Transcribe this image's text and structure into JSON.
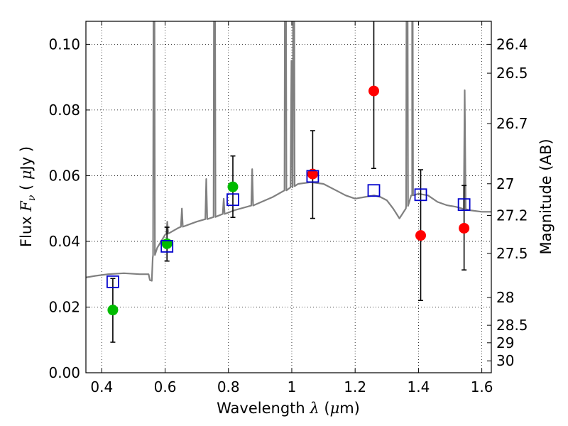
{
  "chart_data": {
    "type": "scatter",
    "title": "",
    "xlabel": {
      "prefix": "Wavelength  ",
      "symbol": "λ",
      "suffix_open": " (",
      "unit_mu": "μ",
      "unit_rest": "m)"
    },
    "ylabel": {
      "prefix": "Flux  ",
      "symbol_F": "F",
      "symbol_sub": "ν",
      "suffix_open": "  ( ",
      "unit_mu": "μ",
      "unit_rest": "Jy )"
    },
    "y2label": "Magnitude (AB)",
    "xlim": [
      0.35,
      1.63
    ],
    "ylim": [
      0.0,
      0.107
    ],
    "xticks": [
      0.4,
      0.6,
      0.8,
      1.0,
      1.2,
      1.4,
      1.6
    ],
    "xtick_labels": [
      "0.4",
      "0.6",
      "0.8",
      "1",
      "1.2",
      "1.4",
      "1.6"
    ],
    "yticks": [
      0.0,
      0.02,
      0.04,
      0.06,
      0.08,
      0.1
    ],
    "ytick_labels": [
      "0.00",
      "0.02",
      "0.04",
      "0.06",
      "0.08",
      "0.10"
    ],
    "y2ticks": [
      "26.4",
      "26.5",
      "26.7",
      "27",
      "27.2",
      "27.5",
      "28",
      "28.5",
      "29",
      "30"
    ],
    "grid": true,
    "colors": {
      "spectrum": "#808080",
      "green": "#00bb00",
      "red": "#ff0000",
      "model": "#0000cc",
      "errorbar": "#000000"
    },
    "series": [
      {
        "marker": "circle-green",
        "points": [
          {
            "x": 0.435,
            "y": 0.0191,
            "ylo": 0.0093,
            "yhi": 0.0287
          },
          {
            "x": 0.606,
            "y": 0.0393,
            "ylo": 0.034,
            "yhi": 0.0443
          },
          {
            "x": 0.814,
            "y": 0.0566,
            "ylo": 0.0473,
            "yhi": 0.066
          }
        ]
      },
      {
        "marker": "circle-red",
        "points": [
          {
            "x": 1.066,
            "y": 0.0605,
            "ylo": 0.047,
            "yhi": 0.0737
          },
          {
            "x": 1.259,
            "y": 0.0858,
            "ylo": 0.0622,
            "yhi": 0.11
          },
          {
            "x": 1.407,
            "y": 0.0418,
            "ylo": 0.022,
            "yhi": 0.0618
          },
          {
            "x": 1.544,
            "y": 0.044,
            "ylo": 0.0313,
            "yhi": 0.057
          }
        ]
      },
      {
        "marker": "square-blue",
        "points": [
          {
            "x": 0.435,
            "y": 0.0277
          },
          {
            "x": 0.606,
            "y": 0.0385
          },
          {
            "x": 0.814,
            "y": 0.0527
          },
          {
            "x": 1.066,
            "y": 0.0598
          },
          {
            "x": 1.259,
            "y": 0.0555
          },
          {
            "x": 1.407,
            "y": 0.0542
          },
          {
            "x": 1.544,
            "y": 0.0512
          }
        ]
      }
    ],
    "spectrum": {
      "baseline": [
        [
          0.35,
          0.029
        ],
        [
          0.38,
          0.0295
        ],
        [
          0.42,
          0.03
        ],
        [
          0.47,
          0.0303
        ],
        [
          0.52,
          0.03
        ],
        [
          0.548,
          0.03
        ],
        [
          0.552,
          0.0282
        ],
        [
          0.558,
          0.028
        ],
        [
          0.561,
          0.035
        ],
        [
          0.575,
          0.038
        ],
        [
          0.6,
          0.042
        ],
        [
          0.64,
          0.044
        ],
        [
          0.7,
          0.046
        ],
        [
          0.76,
          0.0475
        ],
        [
          0.82,
          0.0495
        ],
        [
          0.88,
          0.051
        ],
        [
          0.94,
          0.0535
        ],
        [
          0.99,
          0.056
        ],
        [
          1.02,
          0.0575
        ],
        [
          1.06,
          0.058
        ],
        [
          1.1,
          0.0575
        ],
        [
          1.14,
          0.0555
        ],
        [
          1.17,
          0.054
        ],
        [
          1.2,
          0.053
        ],
        [
          1.23,
          0.0535
        ],
        [
          1.26,
          0.054
        ],
        [
          1.28,
          0.0535
        ],
        [
          1.3,
          0.0525
        ],
        [
          1.32,
          0.05
        ],
        [
          1.34,
          0.047
        ],
        [
          1.36,
          0.05
        ],
        [
          1.38,
          0.054
        ],
        [
          1.4,
          0.0545
        ],
        [
          1.43,
          0.054
        ],
        [
          1.46,
          0.052
        ],
        [
          1.49,
          0.051
        ],
        [
          1.52,
          0.0505
        ],
        [
          1.56,
          0.0495
        ],
        [
          1.6,
          0.049
        ],
        [
          1.63,
          0.049
        ]
      ],
      "peaks": [
        [
          0.565,
          0.2
        ],
        [
          0.607,
          0.046
        ],
        [
          0.653,
          0.05
        ],
        [
          0.73,
          0.059
        ],
        [
          0.756,
          0.2
        ],
        [
          0.785,
          0.053
        ],
        [
          0.875,
          0.062
        ],
        [
          0.98,
          0.2
        ],
        [
          0.999,
          0.095
        ],
        [
          1.006,
          0.2
        ],
        [
          1.364,
          0.2
        ],
        [
          1.38,
          0.2
        ],
        [
          1.546,
          0.086
        ]
      ]
    }
  }
}
